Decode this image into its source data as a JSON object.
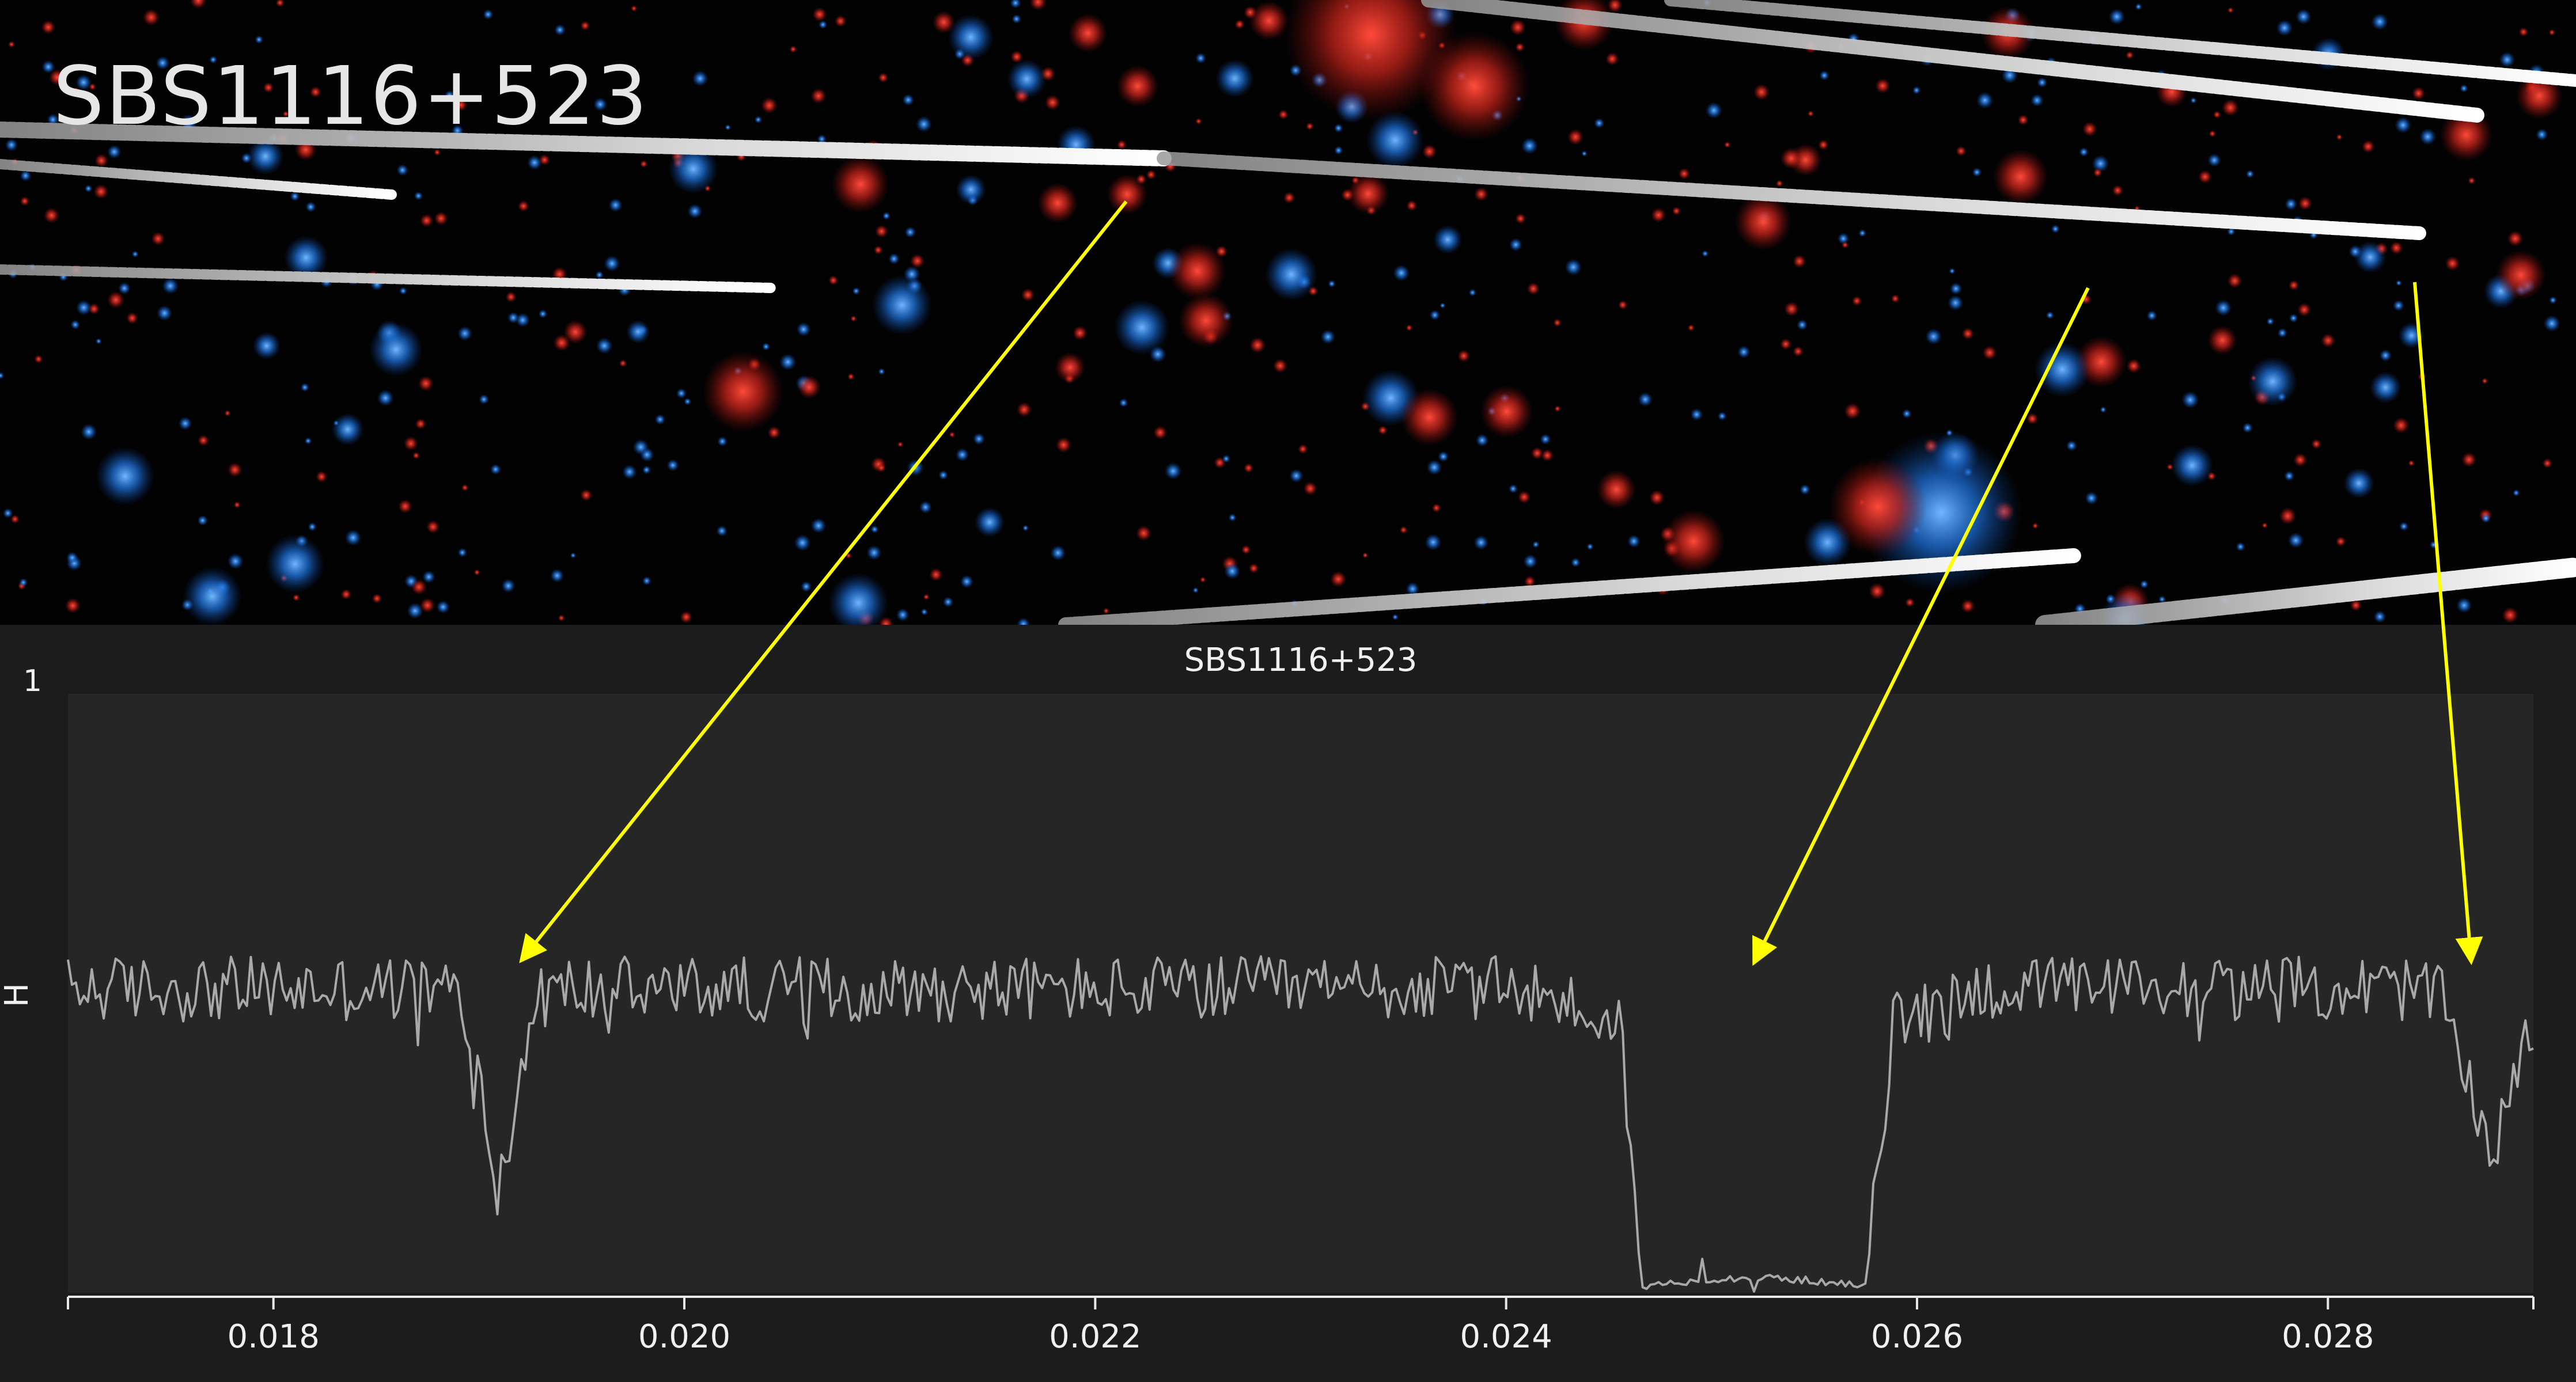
{
  "overlay_title": "SBS1116+523",
  "colors": {
    "sky_background": "#020203",
    "panel_background": "#1c1c1c",
    "plot_background": "#262626",
    "curve": "#a9a9a9",
    "text": "#f0f0f0",
    "arrow": "#ffff00",
    "star_red": "#d42a1c",
    "star_blue": "#1f73d6",
    "streak": "#d9d9d9"
  },
  "chart_data": {
    "type": "line",
    "title": "SBS1116+523",
    "y_top_tick_label": "1",
    "y_axis_marker": "H",
    "xlim": [
      0.017,
      0.029
    ],
    "ylim": [
      0.0,
      1.0
    ],
    "x_ticks": [
      0.018,
      0.02,
      0.022,
      0.024,
      0.026,
      0.028
    ],
    "x_tick_labels": [
      "0.018",
      "0.020",
      "0.022",
      "0.024",
      "0.026",
      "0.028"
    ],
    "grid": false,
    "legend": "none",
    "curve_description_points": {
      "baseline_level": 0.51,
      "secondary_dip": {
        "center": 0.0191,
        "depth_level": 0.2
      },
      "primary_eclipse": {
        "ingress_start": 0.02455,
        "bottom_start": 0.02465,
        "bottom_end": 0.02575,
        "egress_end": 0.0259,
        "bottom_level": 0.01
      },
      "right_dip": {
        "center": 0.0288,
        "depth_level": 0.17
      }
    }
  },
  "annotations": [
    {
      "name": "arrow-to-secondary-dip",
      "points_to_x": 0.01915
    },
    {
      "name": "arrow-to-primary-eclipse",
      "points_to_x": 0.0252
    },
    {
      "name": "arrow-to-right-dip",
      "points_to_x": 0.0287
    }
  ]
}
